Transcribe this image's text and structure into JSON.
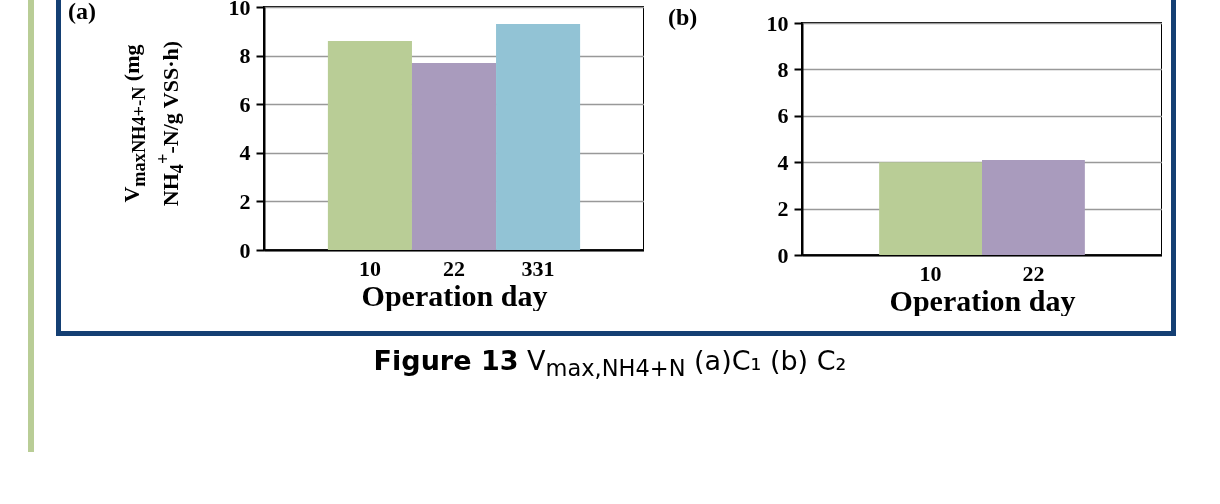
{
  "chart_data": [
    {
      "type": "bar",
      "title": "(a)",
      "xlabel": "Operation day",
      "ylabel": "V$_{maxNH4+-N}$ (mg NH$_{4}$$^{+}$-N/g VSS·h)",
      "categories": [
        "10",
        "22",
        "331"
      ],
      "values": [
        8.6,
        7.7,
        9.3
      ],
      "colors": [
        "#b9cd96",
        "#a99bbd",
        "#92c3d5"
      ],
      "ylim": [
        0,
        10
      ],
      "yticks": [
        0,
        2,
        4,
        6,
        8,
        10
      ],
      "grid": "y",
      "annotations": [
        "Figure 13",
        "V$_{max,NH4+N}$ (a)C₁ (b) C₂"
      ]
    },
    {
      "type": "bar",
      "title": "(b)",
      "xlabel": "Operation day",
      "categories": [
        "10",
        "22"
      ],
      "values": [
        4.0,
        4.1
      ],
      "colors": [
        "#b9cd96",
        "#a99bbd"
      ],
      "ylim": [
        0,
        10
      ],
      "yticks": [
        0,
        2,
        4,
        6,
        8,
        10
      ],
      "grid": "y"
    }
  ]
}
